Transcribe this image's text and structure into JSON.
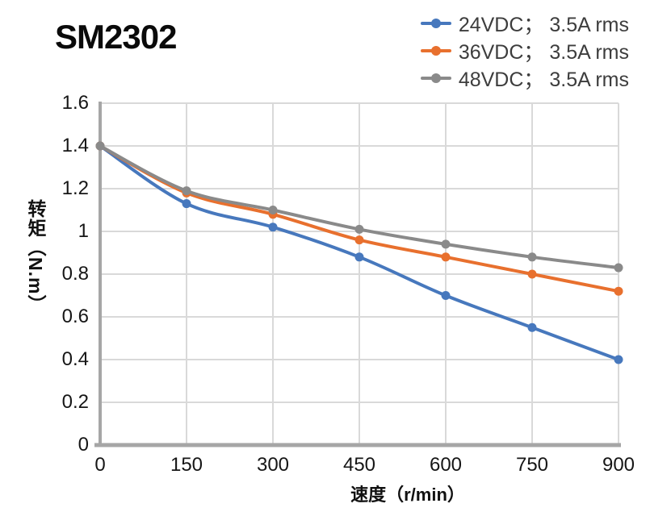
{
  "chart_data": {
    "type": "line",
    "title": "SM2302",
    "x": [
      0,
      150,
      300,
      450,
      600,
      750,
      900
    ],
    "series": [
      {
        "name": "24VDC； 3.5A rms",
        "color": "#4778bd",
        "values": [
          1.4,
          1.13,
          1.02,
          0.88,
          0.7,
          0.55,
          0.4
        ]
      },
      {
        "name": "36VDC； 3.5A rms",
        "color": "#e8702e",
        "values": [
          1.4,
          1.18,
          1.08,
          0.96,
          0.88,
          0.8,
          0.72
        ]
      },
      {
        "name": "48VDC； 3.5A rms",
        "color": "#8a8a8a",
        "values": [
          1.4,
          1.19,
          1.1,
          1.01,
          0.94,
          0.88,
          0.83
        ]
      }
    ],
    "xlabel": "速度（r/min）",
    "ylabel": "转矩（N.m）",
    "xlim": [
      0,
      900
    ],
    "ylim": [
      0,
      1.6
    ],
    "x_ticks": [
      "0",
      "150",
      "300",
      "450",
      "600",
      "750",
      "900"
    ],
    "y_ticks": [
      "0",
      "0.2",
      "0.4",
      "0.6",
      "0.8",
      "1",
      "1.2",
      "1.4",
      "1.6"
    ],
    "grid": true,
    "smooth_lines": true,
    "legend_position": "top-right",
    "colors": {
      "grid": "#d9d9d9",
      "axis": "#a6a6a6",
      "tick_text": "#161616",
      "legend_text": "#3d3d3d",
      "title_text": "#0a0a0a"
    }
  }
}
